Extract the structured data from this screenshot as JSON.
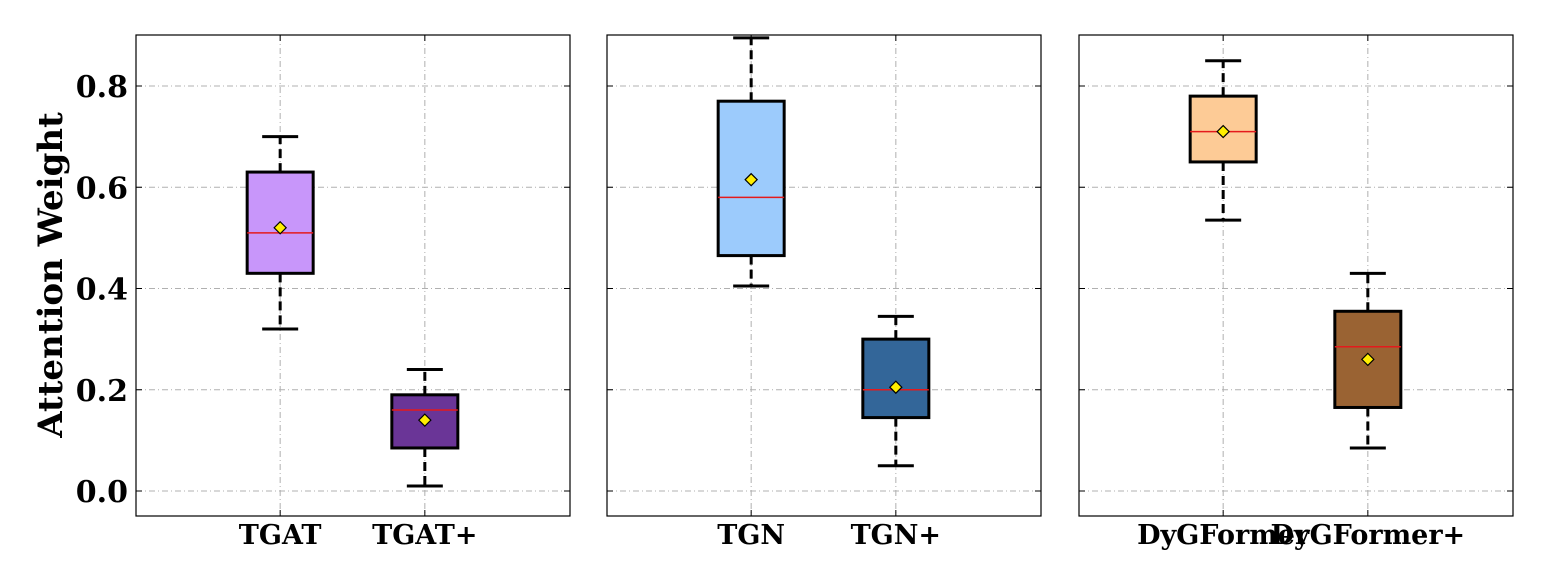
{
  "chart_data": {
    "type": "box",
    "ylabel": "Attention Weight",
    "ylim": [
      -0.05,
      0.9
    ],
    "yticks": [
      0.0,
      0.2,
      0.4,
      0.6,
      0.8
    ],
    "ytick_labels": [
      "0.0",
      "0.2",
      "0.4",
      "0.6",
      "0.8"
    ],
    "grid": true,
    "median_color": "#e41a1c",
    "mean_marker_color": "#ffee00",
    "panels": [
      {
        "categories": [
          "TGAT",
          "TGAT+"
        ],
        "boxes": [
          {
            "label": "TGAT",
            "whisker_low": 0.32,
            "q1": 0.43,
            "median": 0.51,
            "q3": 0.63,
            "whisker_high": 0.7,
            "mean": 0.52,
            "color": "#c896fa"
          },
          {
            "label": "TGAT+",
            "whisker_low": 0.01,
            "q1": 0.085,
            "median": 0.16,
            "q3": 0.19,
            "whisker_high": 0.24,
            "mean": 0.14,
            "color": "#6a3597"
          }
        ]
      },
      {
        "categories": [
          "TGN",
          "TGN+"
        ],
        "boxes": [
          {
            "label": "TGN",
            "whisker_low": 0.405,
            "q1": 0.465,
            "median": 0.58,
            "q3": 0.77,
            "whisker_high": 0.895,
            "mean": 0.615,
            "color": "#9ccbfc"
          },
          {
            "label": "TGN+",
            "whisker_low": 0.05,
            "q1": 0.145,
            "median": 0.2,
            "q3": 0.3,
            "whisker_high": 0.345,
            "mean": 0.205,
            "color": "#336699"
          }
        ]
      },
      {
        "categories": [
          "DyGFormer",
          "DyGFormer+"
        ],
        "boxes": [
          {
            "label": "DyGFormer",
            "whisker_low": 0.535,
            "q1": 0.65,
            "median": 0.71,
            "q3": 0.78,
            "whisker_high": 0.85,
            "mean": 0.71,
            "color": "#fdcb96"
          },
          {
            "label": "DyGFormer+",
            "whisker_low": 0.085,
            "q1": 0.165,
            "median": 0.285,
            "q3": 0.355,
            "whisker_high": 0.43,
            "mean": 0.26,
            "color": "#9a6333"
          }
        ]
      }
    ]
  }
}
